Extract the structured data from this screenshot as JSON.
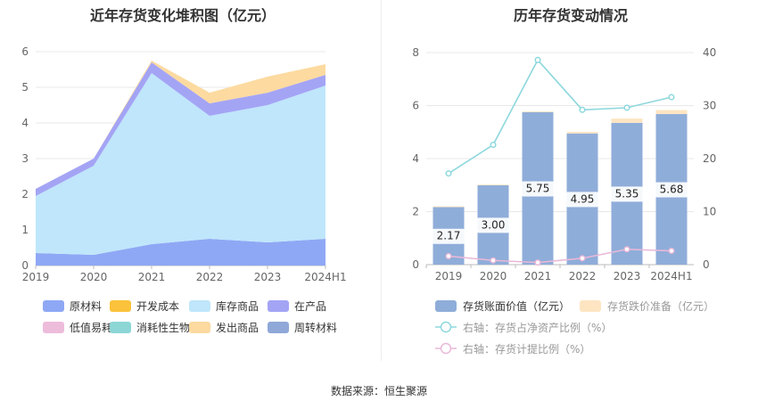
{
  "source_label": "数据来源：恒生聚源",
  "chart_data": [
    {
      "type": "area",
      "stacked": true,
      "title": "近年存货变化堆积图（亿元）",
      "categories": [
        "2019",
        "2020",
        "2021",
        "2022",
        "2023",
        "2024H1"
      ],
      "ylim": [
        0,
        6
      ],
      "yticks": [
        0,
        1,
        2,
        3,
        4,
        5,
        6
      ],
      "grid": true,
      "legend_position": "bottom",
      "series": [
        {
          "name": "原材料",
          "color": "#8fa8f5",
          "values": [
            0.35,
            0.3,
            0.6,
            0.75,
            0.65,
            0.75
          ]
        },
        {
          "name": "开发成本",
          "color": "#fbc23b",
          "values": [
            0,
            0,
            0,
            0,
            0,
            0
          ]
        },
        {
          "name": "库存商品",
          "color": "#bfe6fb",
          "values": [
            1.6,
            2.5,
            4.8,
            3.45,
            3.85,
            4.3
          ]
        },
        {
          "name": "在产品",
          "color": "#a4a4f5",
          "values": [
            0.2,
            0.2,
            0.3,
            0.35,
            0.35,
            0.3
          ]
        },
        {
          "name": "低值易耗品",
          "color": "#eebcdb",
          "values": [
            0,
            0,
            0,
            0,
            0,
            0
          ]
        },
        {
          "name": "消耗性生物资产",
          "color": "#8dd6d6",
          "values": [
            0,
            0,
            0,
            0,
            0,
            0
          ]
        },
        {
          "name": "发出商品",
          "color": "#fcdaa0",
          "values": [
            0,
            0,
            0.05,
            0.3,
            0.45,
            0.3
          ]
        },
        {
          "name": "周转材料",
          "color": "#8fa8d8",
          "values": [
            0,
            0,
            0,
            0,
            0,
            0
          ]
        }
      ]
    },
    {
      "type": "bar",
      "title": "历年存货变动情况",
      "categories": [
        "2019",
        "2020",
        "2021",
        "2022",
        "2023",
        "2024H1"
      ],
      "ylim": [
        0,
        8
      ],
      "yticks": [
        0,
        2,
        4,
        6,
        8
      ],
      "y2lim": [
        0,
        40
      ],
      "y2ticks": [
        0,
        10,
        20,
        30,
        40
      ],
      "grid": true,
      "legend_position": "bottom",
      "series": [
        {
          "name": "存货账面价值（亿元）",
          "type": "bar",
          "axis": "left",
          "color": "#8fadd9",
          "values": [
            2.17,
            3.0,
            5.75,
            4.95,
            5.35,
            5.68
          ],
          "labels": [
            "2.17",
            "3.00",
            "5.75",
            "4.95",
            "5.35",
            "5.68"
          ]
        },
        {
          "name": "存货跌价准备（亿元）",
          "type": "bar",
          "axis": "left",
          "color": "#fde5c2",
          "values": [
            0.03,
            0.02,
            0.03,
            0.06,
            0.16,
            0.15
          ]
        },
        {
          "name": "右轴：存货占净资产比例（%）",
          "type": "line",
          "axis": "right",
          "color": "#8dd8dd",
          "values": [
            17.2,
            22.6,
            38.6,
            29.2,
            29.6,
            31.6
          ]
        },
        {
          "name": "右轴：存货计提比例（%）",
          "type": "line",
          "axis": "right",
          "color": "#e9b8d8",
          "values": [
            1.6,
            0.8,
            0.4,
            1.2,
            2.9,
            2.6
          ]
        }
      ]
    }
  ]
}
